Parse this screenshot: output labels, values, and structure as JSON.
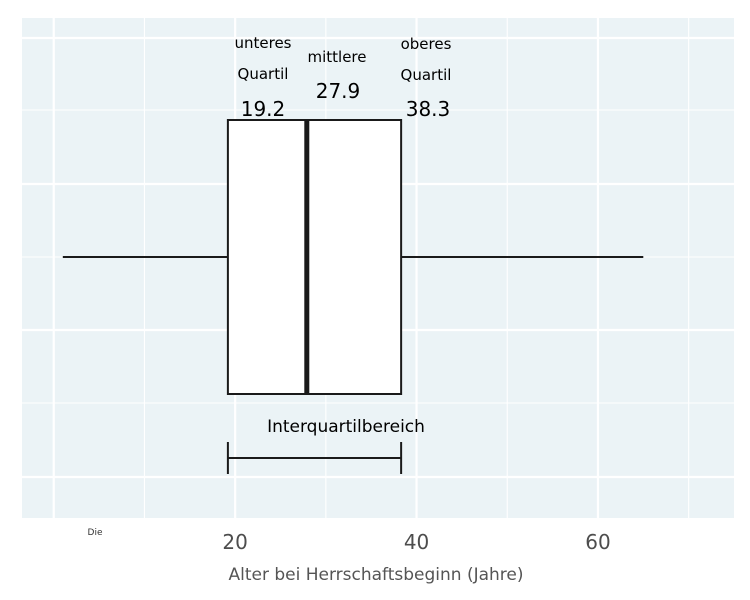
{
  "chart_data": {
    "type": "boxplot",
    "orientation": "horizontal",
    "xlabel": "Alter bei Herrschaftsbeginn (Jahre)",
    "ylabel": "",
    "xlim": [
      -3.5,
      75
    ],
    "x_ticks": [
      20,
      40,
      60
    ],
    "grid": true,
    "stats": {
      "whisker_low": 1,
      "q1": 19.2,
      "median": 27.9,
      "q3": 38.3,
      "whisker_high": 65
    },
    "annotations": {
      "lower_quartile_line1": "unteres",
      "lower_quartile_line2": "Quartil",
      "lower_quartile_value": "19.2",
      "median_label": "mittlere",
      "median_value": "27.9",
      "upper_quartile_line1": "oberes",
      "upper_quartile_line2": "Quartil",
      "upper_quartile_value": "38.3",
      "iqr_label": "Interquartilbereich",
      "corner_note": "Die"
    },
    "colors": {
      "panel_background": "#ebf3f6",
      "grid": "#ffffff",
      "box_fill": "#ffffff",
      "line": "#1a1a1a"
    }
  }
}
